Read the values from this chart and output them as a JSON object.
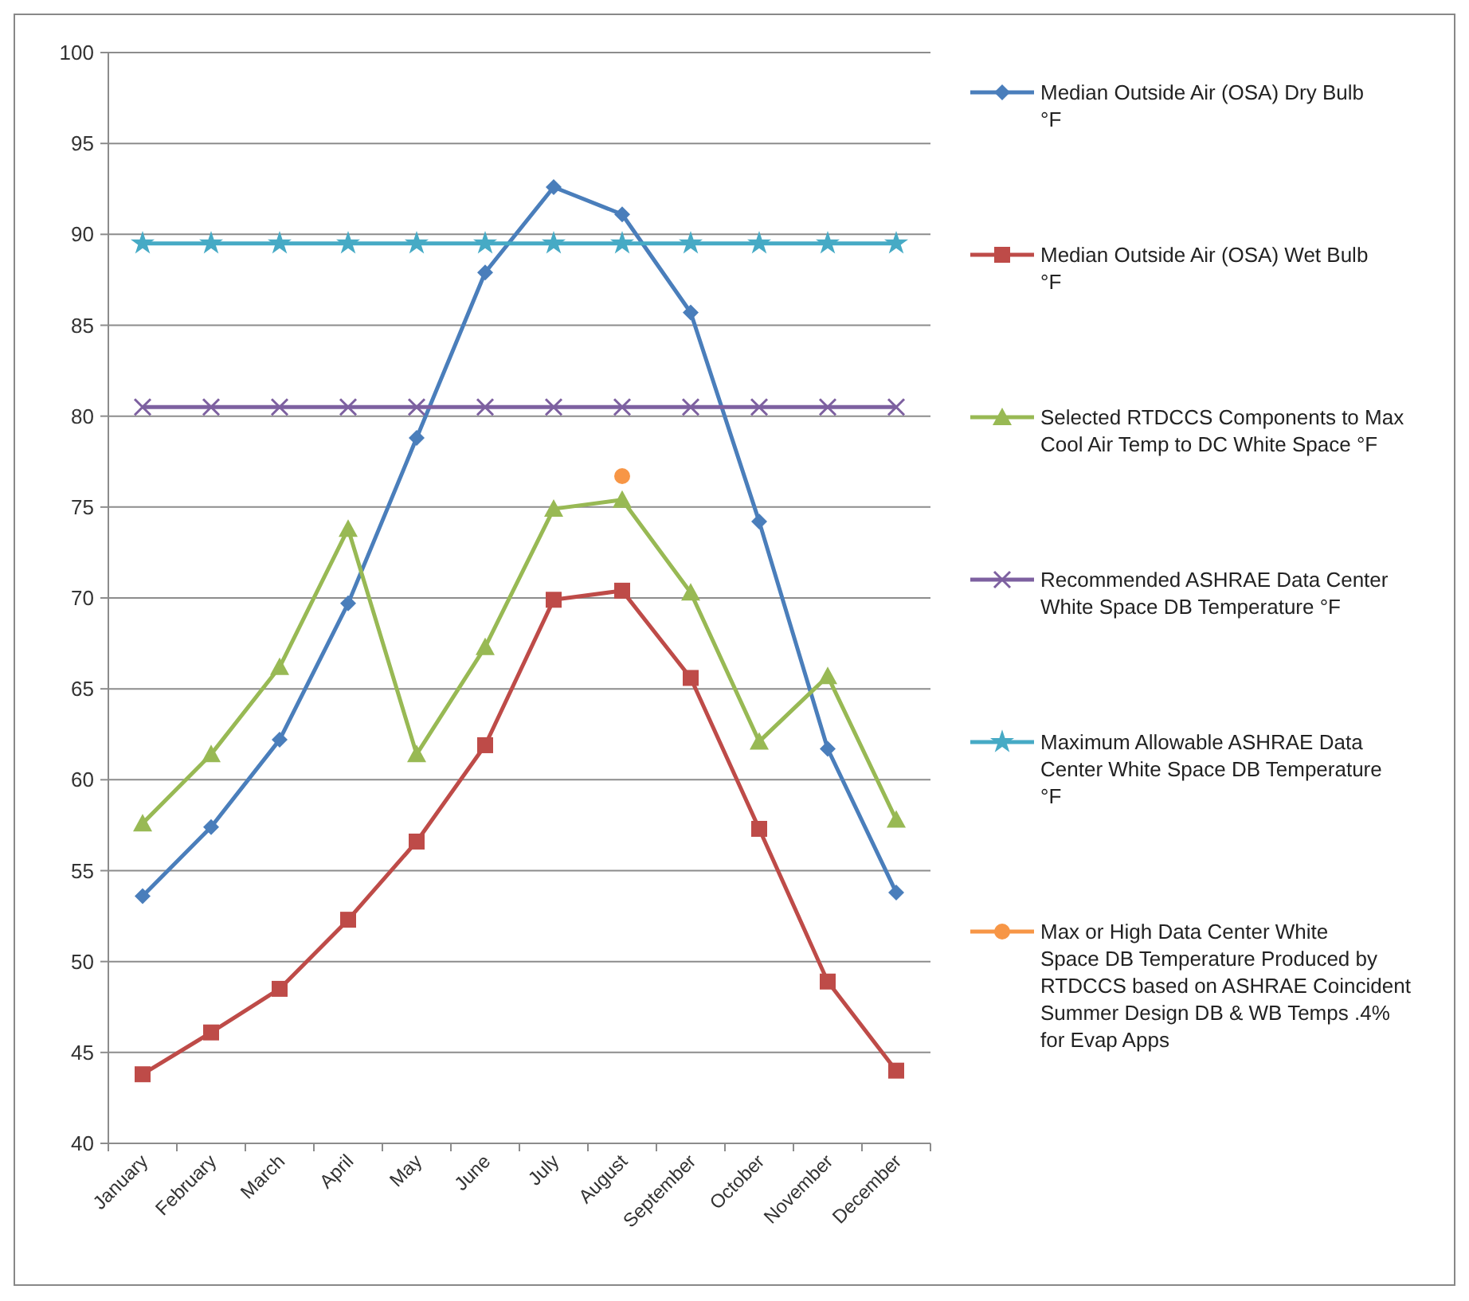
{
  "chart_data": {
    "type": "line",
    "categories": [
      "January",
      "February",
      "March",
      "April",
      "May",
      "June",
      "July",
      "August",
      "September",
      "October",
      "November",
      "December"
    ],
    "ylim": [
      40,
      100
    ],
    "yticks": [
      40,
      45,
      50,
      55,
      60,
      65,
      70,
      75,
      80,
      85,
      90,
      95,
      100
    ],
    "grid": "y",
    "legend": "right",
    "series": [
      {
        "name": "Median Outside Air (OSA) Dry Bulb °F",
        "color": "#4a7ebb",
        "marker": "diamond",
        "values": [
          53.6,
          57.4,
          62.2,
          69.7,
          78.8,
          87.9,
          92.6,
          91.1,
          85.7,
          74.2,
          61.7,
          53.8
        ]
      },
      {
        "name": "Median Outside Air (OSA) Wet Bulb °F",
        "color": "#be4b48",
        "marker": "square",
        "values": [
          43.8,
          46.1,
          48.5,
          52.3,
          56.6,
          61.9,
          69.9,
          70.4,
          65.6,
          57.3,
          48.9,
          44.0
        ]
      },
      {
        "name": "Selected RTDCCS Components to Max Cool Air Temp to DC White Space °F",
        "color": "#98b954",
        "marker": "triangle",
        "values": [
          57.6,
          61.4,
          66.2,
          73.8,
          61.4,
          67.3,
          74.9,
          75.4,
          70.3,
          62.1,
          65.7,
          57.8
        ]
      },
      {
        "name": "Recommended ASHRAE Data Center White Space DB Temperature °F",
        "color": "#7d60a0",
        "marker": "cross",
        "values": [
          80.5,
          80.5,
          80.5,
          80.5,
          80.5,
          80.5,
          80.5,
          80.5,
          80.5,
          80.5,
          80.5,
          80.5
        ]
      },
      {
        "name": "Maximum Allowable ASHRAE Data Center White Space DB Temperature °F",
        "color": "#46aac5",
        "marker": "star",
        "values": [
          89.5,
          89.5,
          89.5,
          89.5,
          89.5,
          89.5,
          89.5,
          89.5,
          89.5,
          89.5,
          89.5,
          89.5
        ]
      },
      {
        "name": "Max or High Data Center White Space DB Temperature Produced by RTDCCS based on ASHRAE Coincident Summer Design DB & WB Temps .4% for Evap Apps",
        "color": "#f79646",
        "marker": "circle",
        "values": [
          null,
          null,
          null,
          null,
          null,
          null,
          null,
          76.7,
          null,
          null,
          null,
          null
        ]
      }
    ]
  }
}
